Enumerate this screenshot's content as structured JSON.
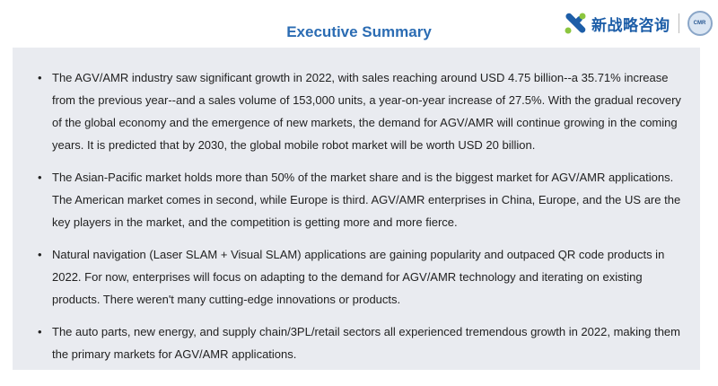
{
  "header": {
    "title": "Executive Summary",
    "logo_text": "新战略咨询",
    "seal_text": "CMR",
    "brand_color": "#2b6cb3"
  },
  "bullets": [
    "The AGV/AMR industry saw significant growth in 2022, with sales reaching around USD 4.75 billion--a 35.71% increase from the previous year--and a sales volume of 153,000 units, a year-on-year increase of 27.5%. With the gradual recovery of the global economy and the emergence of new markets, the demand for AGV/AMR will continue growing in the coming years. It is predicted that by 2030, the global mobile robot market will be worth USD 20 billion.",
    "The Asian-Pacific market holds more than 50% of the market share and is the biggest market for AGV/AMR applications. The American market comes in second, while Europe is third. AGV/AMR enterprises in China, Europe, and the US are the key players in the market, and the competition is getting more and more fierce.",
    "Natural navigation (Laser SLAM + Visual SLAM) applications are gaining popularity and outpaced QR code products in 2022. For now, enterprises will focus on adapting to the demand for AGV/AMR technology and iterating on existing products. There weren't many cutting-edge innovations or products.",
    "The auto parts, new energy, and supply chain/3PL/retail sectors all experienced tremendous growth in 2022, making them the primary markets for AGV/AMR applications."
  ]
}
